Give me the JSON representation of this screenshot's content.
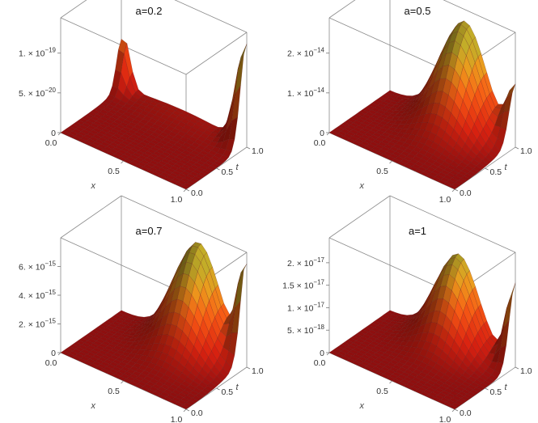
{
  "chart_data": [
    {
      "type": "surface3d",
      "title": "a=0.2",
      "xlabel": "x",
      "ylabel": "t",
      "x_ticks": [
        "0.0",
        "0.5",
        "1.0"
      ],
      "t_ticks": [
        "0.0",
        "0.5",
        "1.0"
      ],
      "z_ticks": [
        {
          "label": "1. × 10",
          "exp": "−19"
        },
        {
          "label": "5. × 10",
          "exp": "−20"
        },
        {
          "label": "0",
          "exp": ""
        }
      ],
      "xlim": [
        0,
        1
      ],
      "tlim": [
        0,
        1
      ],
      "features": [
        {
          "x": 0.02,
          "t": 1.0,
          "peak": 0.5,
          "sx": 0.05,
          "st": 0.08
        },
        {
          "x": 1.0,
          "t": 1.0,
          "peak": 1.0,
          "sx": 0.07,
          "st": 0.1
        },
        {
          "x": 0.5,
          "t": 1.0,
          "peak": 0.08,
          "sx": 0.4,
          "st": 0.2
        }
      ]
    },
    {
      "type": "surface3d",
      "title": "a=0.5",
      "xlabel": "x",
      "ylabel": "t",
      "x_ticks": [
        "0.0",
        "0.5",
        "1.0"
      ],
      "t_ticks": [
        "0.0",
        "0.5",
        "1.0"
      ],
      "z_ticks": [
        {
          "label": "2. × 10",
          "exp": "−14"
        },
        {
          "label": "1. × 10",
          "exp": "−14"
        },
        {
          "label": "0",
          "exp": ""
        }
      ],
      "xlim": [
        0,
        1
      ],
      "tlim": [
        0,
        1
      ],
      "features": [
        {
          "x": 0.6,
          "t": 1.0,
          "peak": 1.0,
          "sx": 0.17,
          "st": 0.28
        },
        {
          "x": 1.0,
          "t": 1.0,
          "peak": 0.55,
          "sx": 0.06,
          "st": 0.1
        }
      ]
    },
    {
      "type": "surface3d",
      "title": "a=0.7",
      "xlabel": "x",
      "ylabel": "t",
      "x_ticks": [
        "0.0",
        "0.5",
        "1.0"
      ],
      "t_ticks": [
        "0.0",
        "0.5",
        "1.0"
      ],
      "z_ticks": [
        {
          "label": "6. × 10",
          "exp": "−15"
        },
        {
          "label": "4. × 10",
          "exp": "−15"
        },
        {
          "label": "2. × 10",
          "exp": "−15"
        },
        {
          "label": "0",
          "exp": ""
        }
      ],
      "xlim": [
        0,
        1
      ],
      "tlim": [
        0,
        1
      ],
      "features": [
        {
          "x": 0.62,
          "t": 1.0,
          "peak": 1.0,
          "sx": 0.17,
          "st": 0.28
        },
        {
          "x": 1.0,
          "t": 1.0,
          "peak": 1.0,
          "sx": 0.06,
          "st": 0.1
        }
      ]
    },
    {
      "type": "surface3d",
      "title": "a=1",
      "xlabel": "x",
      "ylabel": "t",
      "x_ticks": [
        "0.0",
        "0.5",
        "1.0"
      ],
      "t_ticks": [
        "0.0",
        "0.5",
        "1.0"
      ],
      "z_ticks": [
        {
          "label": "2. × 10",
          "exp": "−17"
        },
        {
          "label": "1.5 × 10",
          "exp": "−17"
        },
        {
          "label": "1. × 10",
          "exp": "−17"
        },
        {
          "label": "5. × 10",
          "exp": "−18"
        },
        {
          "label": "0",
          "exp": ""
        }
      ],
      "xlim": [
        0,
        1
      ],
      "tlim": [
        0,
        1
      ],
      "features": [
        {
          "x": 0.55,
          "t": 1.0,
          "peak": 0.85,
          "sx": 0.16,
          "st": 0.25
        },
        {
          "x": 1.0,
          "t": 1.0,
          "peak": 0.8,
          "sx": 0.06,
          "st": 0.1
        }
      ]
    }
  ]
}
